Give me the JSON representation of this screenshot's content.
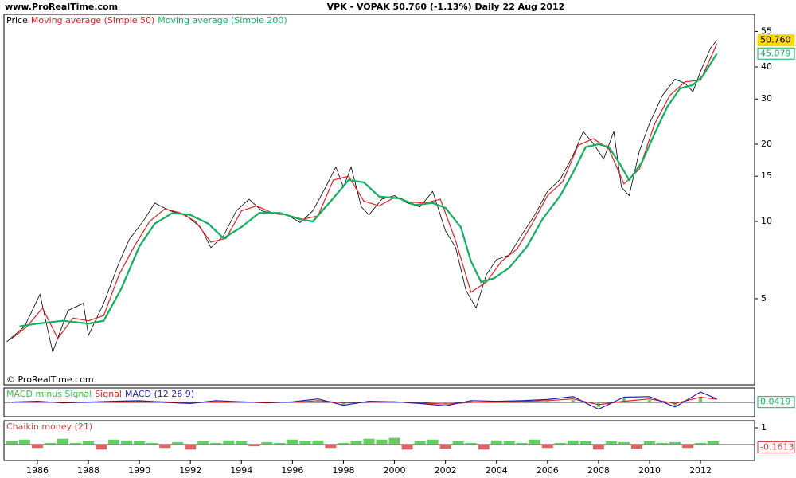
{
  "site": "www.ProRealTime.com",
  "watermark": "© ProRealTime.com",
  "chart_data": [
    {
      "type": "line",
      "title": "VPK - VOPAK    50.760 (-1.13%)    Daily  22 Aug 2012",
      "log_scale": true,
      "xlim": [
        1984.69,
        2014.12
      ],
      "ylim": [
        2.31,
        64.1
      ],
      "xticks": [
        1986,
        1988,
        1990,
        1992,
        1994,
        1996,
        1998,
        2000,
        2002,
        2004,
        2006,
        2008,
        2010,
        2012
      ],
      "yticks": [
        5,
        10,
        15,
        20,
        30,
        40,
        55
      ],
      "series": [
        {
          "name": "Price",
          "color": "#000000",
          "x": [
            1984.8,
            1985.5,
            1986.1,
            1986.6,
            1987.2,
            1987.8,
            1988.0,
            1988.6,
            1989.2,
            1989.6,
            1990.2,
            1990.6,
            1991.2,
            1991.8,
            1992.4,
            1992.8,
            1993.3,
            1993.8,
            1994.3,
            1994.8,
            1995.3,
            1995.8,
            1996.3,
            1996.8,
            1997.3,
            1997.7,
            1998.0,
            1998.3,
            1998.7,
            1999.0,
            1999.5,
            2000.0,
            2000.5,
            2001.0,
            2001.5,
            2002.0,
            2002.4,
            2002.8,
            2003.2,
            2003.6,
            2004.0,
            2004.5,
            2005.0,
            2005.5,
            2006.0,
            2006.5,
            2007.0,
            2007.4,
            2007.8,
            2008.2,
            2008.6,
            2008.9,
            2009.2,
            2009.6,
            2010.0,
            2010.5,
            2011.0,
            2011.4,
            2011.7,
            2012.0,
            2012.4,
            2012.64
          ],
          "values": [
            3.4,
            3.9,
            5.2,
            3.1,
            4.5,
            4.8,
            3.6,
            4.8,
            6.9,
            8.5,
            10.2,
            11.8,
            11.0,
            10.6,
            9.5,
            7.9,
            8.8,
            11.0,
            12.2,
            11.0,
            10.7,
            10.6,
            9.9,
            11.0,
            13.6,
            16.3,
            13.6,
            16.3,
            11.4,
            10.6,
            12.2,
            12.6,
            11.8,
            11.4,
            13.1,
            9.2,
            7.9,
            5.4,
            4.6,
            6.2,
            7.1,
            7.4,
            8.9,
            10.6,
            13.1,
            14.6,
            18.1,
            22.4,
            20.1,
            17.5,
            22.4,
            13.6,
            12.6,
            18.8,
            24.1,
            30.9,
            35.8,
            34.5,
            32.0,
            38.4,
            47.5,
            50.76
          ]
        },
        {
          "name": "Moving average (Simple 50)",
          "color": "#e02020",
          "x": [
            1985,
            1985.6,
            1986.2,
            1986.8,
            1987.4,
            1988.0,
            1988.6,
            1989.2,
            1989.8,
            1990.4,
            1991.0,
            1991.6,
            1992.2,
            1992.8,
            1993.4,
            1994.0,
            1994.6,
            1995.2,
            1995.8,
            1996.4,
            1997.0,
            1997.6,
            1998.2,
            1998.8,
            1999.4,
            2000.0,
            2000.6,
            2001.2,
            2001.8,
            2002.4,
            2003.0,
            2003.6,
            2004.2,
            2004.8,
            2005.4,
            2006.0,
            2006.6,
            2007.2,
            2007.8,
            2008.4,
            2009.0,
            2009.6,
            2010.2,
            2010.8,
            2011.4,
            2012.0,
            2012.64
          ],
          "values": [
            3.5,
            3.9,
            4.6,
            3.5,
            4.2,
            4.1,
            4.3,
            6.2,
            8.0,
            10.0,
            11.2,
            10.8,
            10.0,
            8.3,
            8.6,
            11.0,
            11.5,
            10.8,
            10.6,
            10.2,
            10.5,
            14.5,
            15.0,
            12.0,
            11.5,
            12.4,
            11.9,
            11.8,
            12.2,
            8.4,
            5.3,
            5.8,
            7.0,
            7.8,
            9.8,
            12.6,
            14.3,
            19.8,
            21.0,
            19.2,
            14.0,
            16.0,
            24.0,
            31.0,
            35.0,
            35.5,
            49.2
          ]
        },
        {
          "name": "Moving average (Simple 200)",
          "color": "#10b060",
          "x": [
            1985.3,
            1986,
            1987,
            1988,
            1988.6,
            1989.3,
            1990,
            1990.6,
            1991.3,
            1992,
            1992.7,
            1993.3,
            1994,
            1994.7,
            1995.5,
            1996.3,
            1996.8,
            1997.5,
            1998.2,
            1998.8,
            1999.4,
            2000.2,
            2000.8,
            2001.5,
            2002.0,
            2002.6,
            2003.0,
            2003.4,
            2003.9,
            2004.5,
            2005.2,
            2005.8,
            2006.5,
            2007.0,
            2007.5,
            2008.0,
            2008.4,
            2008.8,
            2009.2,
            2009.7,
            2010.2,
            2010.7,
            2011.2,
            2011.7,
            2012.1,
            2012.64
          ],
          "values": [
            3.9,
            4.0,
            4.1,
            4.0,
            4.1,
            5.5,
            8.0,
            9.8,
            10.8,
            10.6,
            9.8,
            8.6,
            9.5,
            10.8,
            10.8,
            10.2,
            10.0,
            12.0,
            14.5,
            14.2,
            12.5,
            12.3,
            11.6,
            11.8,
            11.3,
            9.5,
            7.0,
            5.8,
            6.0,
            6.6,
            8.0,
            10.2,
            12.6,
            15.5,
            19.5,
            20.0,
            19.5,
            17.0,
            14.5,
            17.0,
            22.0,
            28.0,
            33.0,
            34.0,
            37.0,
            45.079
          ]
        }
      ],
      "last_values": [
        {
          "value": 50.76,
          "label": "50.760",
          "color": "#ffd700"
        },
        {
          "value": 45.079,
          "label": "45.079",
          "color": "#10b060"
        }
      ]
    },
    {
      "type": "macd",
      "xlim": [
        1984.69,
        2014.12
      ],
      "ylim": [
        -2.5,
        2.5
      ],
      "series": [
        {
          "name": "MACD minus Signal",
          "color": "#40c040",
          "kind": "bar",
          "x": [
            1985,
            1986,
            1987,
            1988,
            1989,
            1990,
            1991,
            1992,
            1993,
            1994,
            1995,
            1996,
            1997,
            1998,
            1999,
            2000,
            2001,
            2002,
            2003,
            2004,
            2005,
            2006,
            2007,
            2008,
            2009,
            2010,
            2011,
            2012,
            2012.64
          ],
          "values": [
            0.05,
            0.1,
            -0.1,
            0.05,
            0.1,
            0.1,
            -0.1,
            -0.1,
            0.2,
            0.0,
            -0.1,
            0.1,
            0.3,
            -0.4,
            0.2,
            0.0,
            -0.1,
            -0.3,
            0.3,
            0.1,
            0.1,
            0.2,
            0.4,
            -0.8,
            0.7,
            0.4,
            -0.6,
            0.9,
            0.0419
          ]
        },
        {
          "name": "Signal",
          "color": "#e02020",
          "kind": "line",
          "x": [
            1985,
            1986,
            1987,
            1988,
            1989,
            1990,
            1991,
            1992,
            1993,
            1994,
            1995,
            1996,
            1997,
            1998,
            1999,
            2000,
            2001,
            2002,
            2003,
            2004,
            2005,
            2006,
            2007,
            2008,
            2009,
            2010,
            2011,
            2012,
            2012.64
          ],
          "values": [
            0.0,
            0.1,
            0.0,
            0.0,
            0.1,
            0.2,
            0.1,
            -0.1,
            0.1,
            0.1,
            0.0,
            0.0,
            0.3,
            -0.1,
            0.0,
            0.1,
            -0.1,
            -0.3,
            0.0,
            0.1,
            0.2,
            0.3,
            0.6,
            -0.4,
            0.2,
            0.6,
            -0.2,
            0.9,
            0.55
          ]
        },
        {
          "name": "MACD (12 26 9)",
          "color": "#2020b0",
          "kind": "line",
          "x": [
            1985,
            1986,
            1987,
            1988,
            1989,
            1990,
            1991,
            1992,
            1993,
            1994,
            1995,
            1996,
            1997,
            1998,
            1999,
            2000,
            2001,
            2002,
            2003,
            2004,
            2005,
            2006,
            2007,
            2008,
            2009,
            2010,
            2011,
            2012,
            2012.64
          ],
          "values": [
            0.05,
            0.2,
            -0.1,
            0.05,
            0.2,
            0.3,
            0.0,
            -0.2,
            0.3,
            0.1,
            -0.1,
            0.1,
            0.6,
            -0.5,
            0.2,
            0.1,
            -0.2,
            -0.6,
            0.3,
            0.2,
            0.3,
            0.5,
            1.0,
            -1.2,
            0.9,
            1.0,
            -0.8,
            1.8,
            0.6
          ]
        }
      ],
      "last_values": [
        {
          "value": 0.0419,
          "label": "0.0419",
          "color": "#10b060"
        }
      ]
    },
    {
      "type": "histogram-signed",
      "xlim": [
        1984.69,
        2014.12
      ],
      "ylim": [
        -0.95,
        1.43
      ],
      "yticks": [
        1
      ],
      "series": [
        {
          "name": "Chaikin money (21)",
          "color": "#d04040",
          "pos_color": "#40c040",
          "neg_color": "#d04040",
          "x": [
            1985,
            1985.5,
            1986,
            1986.5,
            1987,
            1987.5,
            1988,
            1988.5,
            1989,
            1989.5,
            1990,
            1990.5,
            1991,
            1991.5,
            1992,
            1992.5,
            1993,
            1993.5,
            1994,
            1994.5,
            1995,
            1995.5,
            1996,
            1996.5,
            1997,
            1997.5,
            1998,
            1998.5,
            1999,
            1999.5,
            2000,
            2000.5,
            2001,
            2001.5,
            2002,
            2002.5,
            2003,
            2003.5,
            2004,
            2004.5,
            2005,
            2005.5,
            2006,
            2006.5,
            2007,
            2007.5,
            2008,
            2008.5,
            2009,
            2009.5,
            2010,
            2010.5,
            2011,
            2011.5,
            2012,
            2012.5
          ],
          "values": [
            0.2,
            0.3,
            -0.2,
            0.1,
            0.35,
            0.1,
            0.2,
            -0.3,
            0.3,
            0.25,
            0.2,
            0.1,
            -0.2,
            0.15,
            -0.3,
            0.2,
            0.1,
            0.25,
            0.2,
            -0.1,
            0.15,
            0.1,
            0.3,
            0.2,
            0.25,
            -0.2,
            0.1,
            0.2,
            0.35,
            0.3,
            0.4,
            -0.3,
            0.2,
            0.3,
            -0.25,
            0.2,
            0.1,
            -0.3,
            0.25,
            0.2,
            0.1,
            0.3,
            -0.2,
            0.1,
            0.25,
            0.2,
            -0.3,
            0.2,
            0.15,
            -0.25,
            0.2,
            0.1,
            0.15,
            -0.2,
            0.1,
            0.2
          ]
        }
      ],
      "last_values": [
        {
          "value": -0.1613,
          "label": "-0.1613",
          "color": "#d04040"
        }
      ]
    }
  ]
}
